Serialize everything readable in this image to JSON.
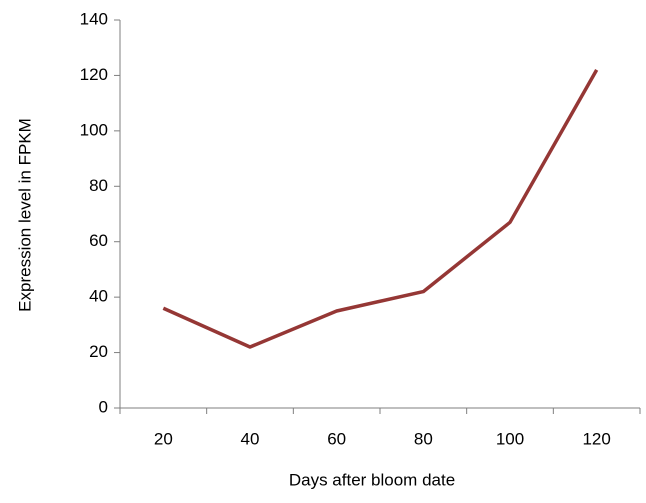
{
  "chart_data": {
    "type": "line",
    "x_label": "Days after bloom date",
    "y_label": "Expression level in FPKM",
    "categories": [
      "20",
      "40",
      "60",
      "80",
      "100",
      "120"
    ],
    "values": [
      36,
      22,
      35,
      42,
      67,
      122
    ],
    "color": "#953735",
    "ylim": [
      0,
      140
    ],
    "yticks": [
      0,
      20,
      40,
      60,
      80,
      100,
      120,
      140
    ],
    "grid": false
  }
}
